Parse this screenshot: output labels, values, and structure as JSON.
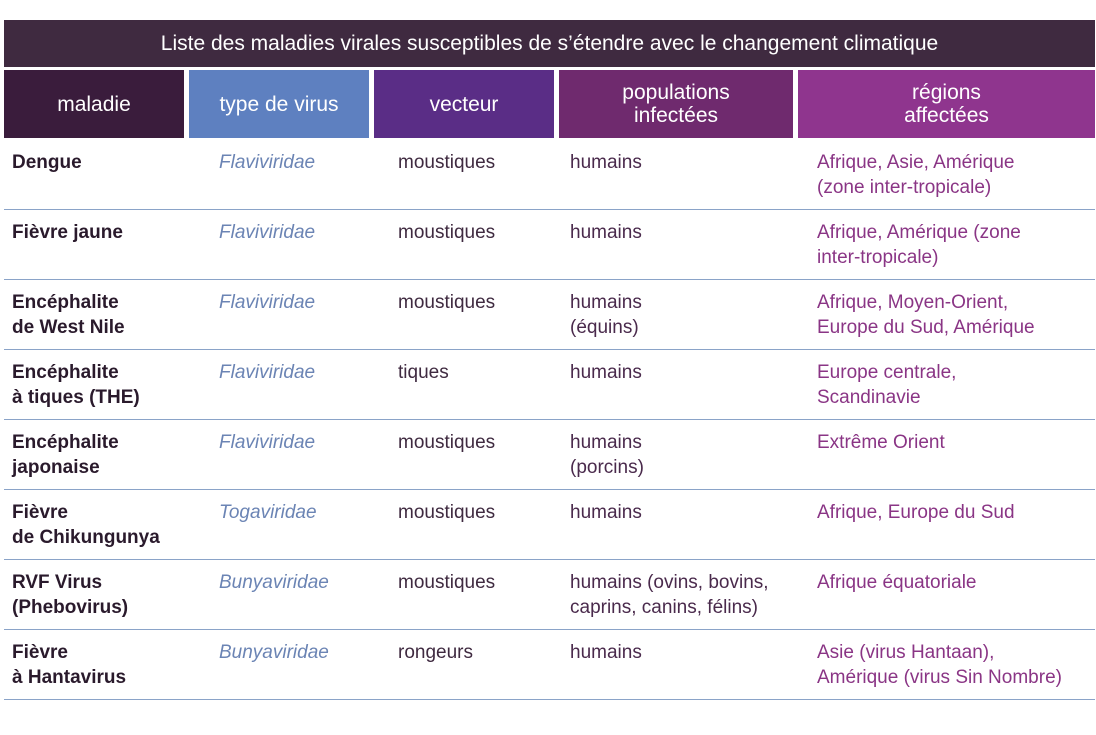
{
  "title": "Liste des maladies virales susceptibles de s’étendre avec le changement climatique",
  "colors": {
    "title_bg": "#3f2a40",
    "header_maladie": "#3a1c3c",
    "header_virus": "#5e80c0",
    "header_vecteur": "#5a2d86",
    "header_populations": "#6f2a6e",
    "header_regions": "#8f358e",
    "row_divider": "#8aa3c8",
    "virus_text": "#6b84b4",
    "regions_text": "#8a3585"
  },
  "headers": {
    "maladie": "maladie",
    "virus": "type de virus",
    "vecteur": "vecteur",
    "populations": "populations\ninfectées",
    "regions": "régions\naffectées"
  },
  "rows": [
    {
      "maladie": "Dengue",
      "virus": "Flaviviridae",
      "vecteur": "moustiques",
      "populations": "humains",
      "regions": "Afrique, Asie, Amérique\n(zone inter-tropicale)"
    },
    {
      "maladie": "Fièvre jaune",
      "virus": "Flaviviridae",
      "vecteur": "moustiques",
      "populations": "humains",
      "regions": "Afrique, Amérique (zone\ninter-tropicale)"
    },
    {
      "maladie": "Encéphalite\nde West Nile",
      "virus": "Flaviviridae",
      "vecteur": "moustiques",
      "populations": "humains\n(équins)",
      "regions": "Afrique, Moyen-Orient,\nEurope du Sud, Amérique"
    },
    {
      "maladie": "Encéphalite\nà tiques (THE)",
      "virus": "Flaviviridae",
      "vecteur": "tiques",
      "populations": "humains",
      "regions": "Europe centrale,\nScandinavie"
    },
    {
      "maladie": "Encéphalite\njaponaise",
      "virus": "Flaviviridae",
      "vecteur": "moustiques",
      "populations": "humains\n(porcins)",
      "regions": "Extrême Orient"
    },
    {
      "maladie": "Fièvre\nde Chikungunya",
      "virus": "Togaviridae",
      "vecteur": "moustiques",
      "populations": "humains",
      "regions": "Afrique, Europe du Sud"
    },
    {
      "maladie": "RVF Virus\n(Phebovirus)",
      "virus": "Bunyaviridae",
      "vecteur": "moustiques",
      "populations": "humains (ovins, bovins,\ncaprins, canins, félins)",
      "regions": "Afrique équatoriale"
    },
    {
      "maladie": "Fièvre\nà Hantavirus",
      "virus": "Bunyaviridae",
      "vecteur": "rongeurs",
      "populations": "humains",
      "regions": "Asie (virus Hantaan),\nAmérique (virus Sin Nombre)"
    }
  ]
}
